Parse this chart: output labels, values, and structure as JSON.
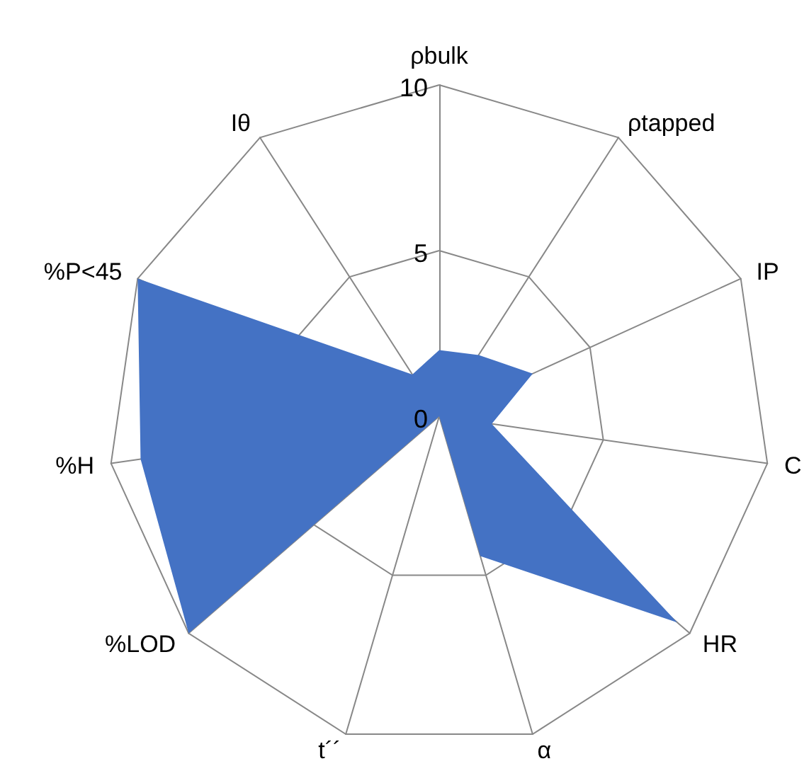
{
  "chart_data": {
    "type": "radar",
    "categories": [
      "ρbulk",
      "ρtapped",
      "IP",
      "C",
      "HR",
      "α",
      "t´´",
      "%LOD",
      "%H",
      "%P<45",
      "Iθ"
    ],
    "series": [
      {
        "color": "#4472c4",
        "values": [
          2.0,
          2.2,
          3.1,
          1.6,
          9.5,
          4.4,
          0,
          10,
          9.1,
          10,
          1.5
        ]
      }
    ],
    "ylim": [
      0,
      10
    ],
    "yticks": [
      0,
      5,
      10
    ],
    "marker": "none"
  }
}
